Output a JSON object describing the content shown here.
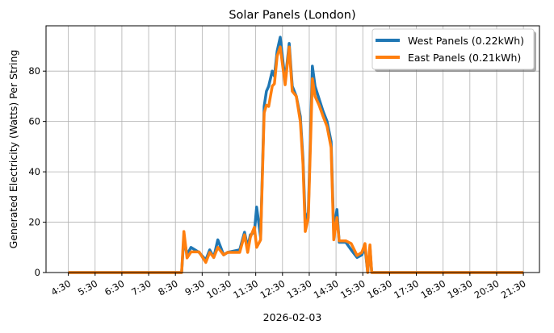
{
  "chart_data": {
    "type": "line",
    "title": "Solar Panels (London)",
    "xlabel": "2026-02-03",
    "ylabel": "Generated Electricity (Watts) Per String",
    "xlim": [
      "03:40",
      "22:06"
    ],
    "ylim": [
      0,
      98
    ],
    "x_ticks": [
      "4:30",
      "5:30",
      "6:30",
      "7:30",
      "8:30",
      "9:30",
      "10:30",
      "11:30",
      "12:30",
      "13:30",
      "14:30",
      "15:30",
      "16:30",
      "17:30",
      "18:30",
      "19:30",
      "20:30",
      "21:30"
    ],
    "y_ticks": [
      0,
      20,
      40,
      60,
      80
    ],
    "grid": true,
    "legend_position": "top-right",
    "series": [
      {
        "name": "West Panels (0.22kWh)",
        "color": "#1f77b4",
        "x": [
          "4:30",
          "8:44",
          "8:49",
          "8:56",
          "9:05",
          "9:23",
          "9:38",
          "9:47",
          "9:56",
          "10:05",
          "10:18",
          "10:27",
          "10:54",
          "11:05",
          "11:12",
          "11:18",
          "11:27",
          "11:32",
          "11:41",
          "11:49",
          "11:54",
          "11:59",
          "12:07",
          "12:12",
          "12:18",
          "12:25",
          "12:36",
          "12:45",
          "12:52",
          "13:01",
          "13:10",
          "13:16",
          "13:21",
          "13:28",
          "13:37",
          "13:43",
          "13:52",
          "14:01",
          "14:10",
          "14:19",
          "14:25",
          "14:32",
          "14:37",
          "14:52",
          "15:04",
          "15:17",
          "15:28",
          "15:35",
          "15:41",
          "15:46",
          "15:50",
          "21:30"
        ],
        "y": [
          0,
          0,
          14,
          7,
          10,
          8,
          5,
          9,
          6,
          13,
          7,
          8,
          9,
          16,
          10,
          15,
          16,
          26,
          14,
          66,
          72,
          74,
          80,
          78,
          88,
          93.5,
          76,
          91,
          74,
          70,
          62,
          45,
          20,
          24,
          82,
          74,
          69,
          64,
          60,
          52,
          16,
          25,
          12,
          12,
          9,
          6,
          7,
          10,
          0,
          10,
          0,
          0
        ]
      },
      {
        "name": "East Panels (0.21kWh)",
        "color": "#ff7f0e",
        "x": [
          "4:30",
          "8:44",
          "8:49",
          "8:56",
          "9:05",
          "9:23",
          "9:38",
          "9:47",
          "9:56",
          "10:05",
          "10:18",
          "10:27",
          "10:54",
          "11:05",
          "11:12",
          "11:18",
          "11:27",
          "11:32",
          "11:41",
          "11:49",
          "11:54",
          "11:59",
          "12:07",
          "12:12",
          "12:18",
          "12:25",
          "12:36",
          "12:45",
          "12:52",
          "13:01",
          "13:10",
          "13:16",
          "13:21",
          "13:28",
          "13:37",
          "13:43",
          "13:52",
          "14:01",
          "14:10",
          "14:19",
          "14:25",
          "14:32",
          "14:37",
          "14:52",
          "15:04",
          "15:17",
          "15:28",
          "15:35",
          "15:41",
          "15:46",
          "15:50",
          "21:30"
        ],
        "y": [
          0,
          0,
          16.3,
          5.8,
          8.2,
          8.2,
          4,
          8,
          6,
          10,
          7,
          8,
          8,
          15,
          8,
          14,
          18,
          10,
          13,
          63.4,
          66.5,
          66,
          74,
          75,
          86,
          89.6,
          74.6,
          89.6,
          72,
          70,
          60,
          43,
          16.3,
          21.8,
          77,
          70,
          66.5,
          62,
          58,
          49.6,
          13,
          21.8,
          12.6,
          12.6,
          11.5,
          6.8,
          8,
          11.5,
          0,
          11,
          0,
          0
        ]
      }
    ]
  }
}
